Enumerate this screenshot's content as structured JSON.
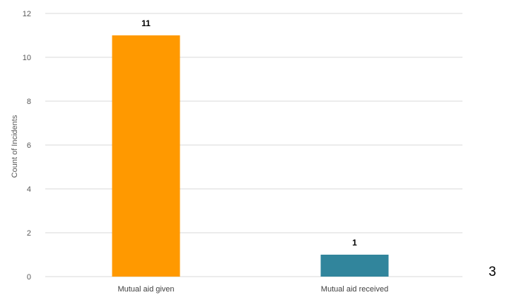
{
  "chart_data": {
    "type": "bar",
    "categories": [
      "Mutual aid given",
      "Mutual aid received"
    ],
    "values": [
      11,
      1
    ],
    "colors": [
      "#FF9900",
      "#31859C"
    ],
    "data_labels": [
      "11",
      "1"
    ],
    "title": "",
    "xlabel": "",
    "ylabel": "Count of Incidents",
    "ylim": [
      0,
      12
    ],
    "yticks": [
      "0",
      "2",
      "4",
      "6",
      "8",
      "10",
      "12"
    ],
    "grid": true,
    "gridline_color": "#D9D9D9",
    "legend": "none"
  },
  "page": {
    "page_number": "3"
  }
}
